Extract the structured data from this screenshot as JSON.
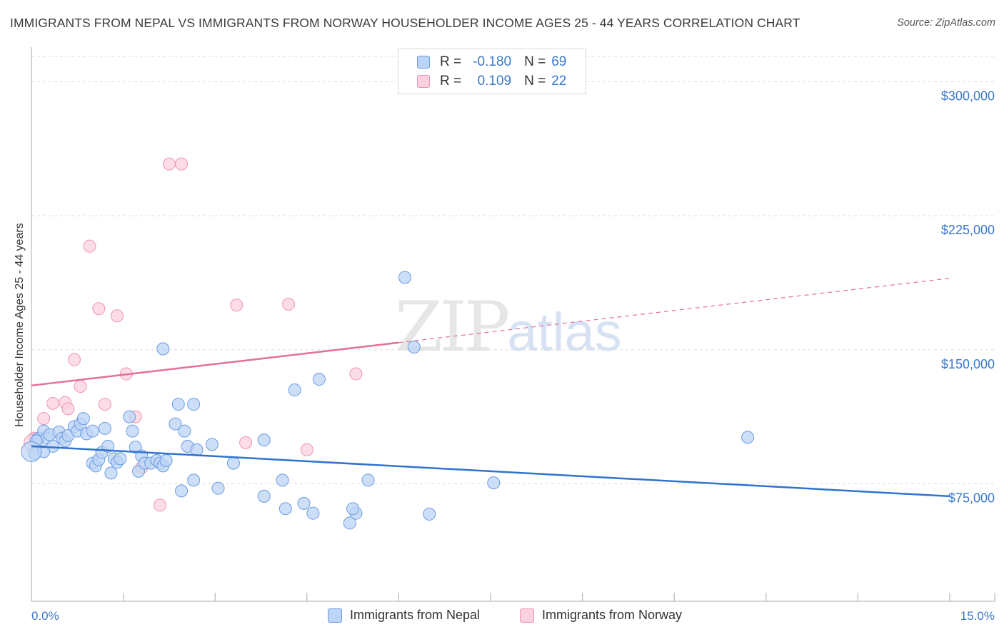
{
  "header": {
    "title": "IMMIGRANTS FROM NEPAL VS IMMIGRANTS FROM NORWAY HOUSEHOLDER INCOME AGES 25 - 44 YEARS CORRELATION CHART",
    "source": "Source: ZipAtlas.com"
  },
  "watermark": {
    "zip": "ZIP",
    "atlas": "atlas"
  },
  "legend": {
    "r_label": "R =",
    "n_label": "N =",
    "nepal": {
      "r": "-0.180",
      "n": "69",
      "name": "Immigrants from Nepal"
    },
    "norway": {
      "r": "0.109",
      "n": "22",
      "name": "Immigrants from Norway"
    }
  },
  "colors": {
    "nepal_fill": "#bcd4f5",
    "nepal_stroke": "#6b9be0",
    "nepal_line": "#2f73cf",
    "norway_fill": "#fbd1de",
    "norway_stroke": "#ef94b1",
    "norway_line": "#e46f96",
    "axis_text": "#3a78c9",
    "grid": "#dddddd"
  },
  "chart_data": {
    "type": "scatter",
    "title": "IMMIGRANTS FROM NEPAL VS IMMIGRANTS FROM NORWAY HOUSEHOLDER INCOME AGES 25 - 44 YEARS CORRELATION CHART",
    "xlabel": "",
    "ylabel": "Householder Income Ages 25 - 44 years",
    "xlim": [
      0,
      15
    ],
    "ylim": [
      10000,
      317000
    ],
    "x_tick_labels": [
      "0.0%",
      "15.0%"
    ],
    "y_ticks": [
      75000,
      150000,
      225000,
      300000
    ],
    "y_tick_labels": [
      "$75,000",
      "$150,000",
      "$225,000",
      "$300,000"
    ],
    "grid": true,
    "legend_position": "top-center",
    "series": [
      {
        "name": "Immigrants from Nepal",
        "r": -0.18,
        "n": 69,
        "trend": {
          "x": [
            0.0,
            15.0
          ],
          "y": [
            96000,
            68000
          ]
        },
        "points": [
          [
            0.05,
            92000
          ],
          [
            0.1,
            100000
          ],
          [
            0.12,
            100500
          ],
          [
            0.2,
            104500
          ],
          [
            0.25,
            100500
          ],
          [
            0.3,
            102500
          ],
          [
            0.35,
            96000
          ],
          [
            0.45,
            104000
          ],
          [
            0.5,
            100500
          ],
          [
            0.55,
            99000
          ],
          [
            0.6,
            102000
          ],
          [
            0.7,
            107000
          ],
          [
            0.75,
            104500
          ],
          [
            0.8,
            108500
          ],
          [
            0.85,
            111500
          ],
          [
            0.9,
            103000
          ],
          [
            1.0,
            104500
          ],
          [
            1.0,
            86500
          ],
          [
            1.05,
            85000
          ],
          [
            1.1,
            88500
          ],
          [
            1.15,
            92500
          ],
          [
            1.2,
            106000
          ],
          [
            1.25,
            96000
          ],
          [
            1.3,
            81000
          ],
          [
            1.35,
            89000
          ],
          [
            1.4,
            87000
          ],
          [
            1.45,
            89000
          ],
          [
            1.6,
            112500
          ],
          [
            1.65,
            104500
          ],
          [
            1.7,
            95500
          ],
          [
            1.75,
            82000
          ],
          [
            1.8,
            90500
          ],
          [
            1.85,
            86500
          ],
          [
            1.95,
            86500
          ],
          [
            2.05,
            88000
          ],
          [
            2.1,
            86500
          ],
          [
            2.15,
            85000
          ],
          [
            2.2,
            88000
          ],
          [
            2.35,
            108500
          ],
          [
            2.4,
            119500
          ],
          [
            2.5,
            104500
          ],
          [
            2.55,
            96000
          ],
          [
            2.7,
            94000
          ],
          [
            2.65,
            77000
          ],
          [
            2.45,
            71000
          ],
          [
            2.95,
            97000
          ],
          [
            3.3,
            86500
          ],
          [
            3.05,
            72500
          ],
          [
            2.65,
            119500
          ],
          [
            2.15,
            150500
          ],
          [
            3.8,
            68000
          ],
          [
            3.8,
            99500
          ],
          [
            4.1,
            77000
          ],
          [
            4.15,
            61000
          ],
          [
            4.3,
            127500
          ],
          [
            4.7,
            133500
          ],
          [
            4.45,
            64000
          ],
          [
            4.6,
            58500
          ],
          [
            5.2,
            53000
          ],
          [
            5.5,
            77000
          ],
          [
            6.1,
            190500
          ],
          [
            6.25,
            151500
          ],
          [
            6.5,
            58000
          ],
          [
            7.55,
            75500
          ],
          [
            11.7,
            101000
          ],
          [
            5.3,
            58500
          ],
          [
            5.25,
            61000
          ],
          [
            0.08,
            99000
          ],
          [
            0.2,
            93000
          ]
        ]
      },
      {
        "name": "Immigrants from Norway",
        "r": 0.109,
        "n": 22,
        "trend": {
          "x": [
            0.0,
            15.0
          ],
          "y": [
            130000,
            190000
          ],
          "solid_until_x": 6.0
        },
        "points": [
          [
            0.05,
            100500
          ],
          [
            0.2,
            111500
          ],
          [
            0.35,
            120000
          ],
          [
            0.55,
            120500
          ],
          [
            0.6,
            117000
          ],
          [
            0.7,
            144500
          ],
          [
            0.8,
            129500
          ],
          [
            0.95,
            208000
          ],
          [
            1.1,
            173000
          ],
          [
            1.2,
            119500
          ],
          [
            1.4,
            169000
          ],
          [
            1.55,
            136500
          ],
          [
            1.7,
            112500
          ],
          [
            1.8,
            84000
          ],
          [
            2.1,
            63000
          ],
          [
            2.25,
            254000
          ],
          [
            2.45,
            254000
          ],
          [
            3.35,
            175000
          ],
          [
            3.5,
            98000
          ],
          [
            4.2,
            175500
          ],
          [
            4.5,
            94000
          ],
          [
            5.3,
            136500
          ]
        ]
      }
    ]
  }
}
